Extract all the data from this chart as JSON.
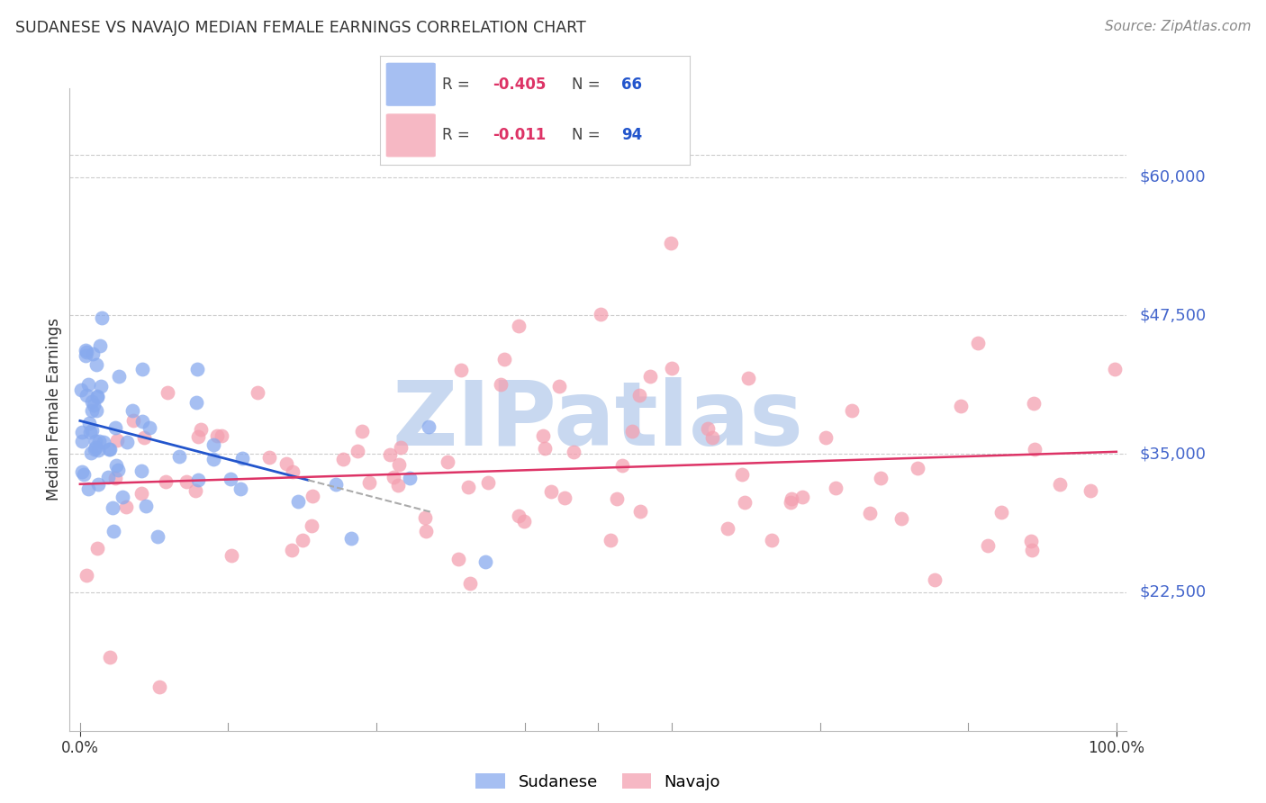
{
  "title": "SUDANESE VS NAVAJO MEDIAN FEMALE EARNINGS CORRELATION CHART",
  "source": "Source: ZipAtlas.com",
  "ylabel": "Median Female Earnings",
  "ylim": [
    10000,
    68000
  ],
  "xlim": [
    -1.0,
    101.0
  ],
  "sudanese_color": "#88aaee",
  "navajo_color": "#f4a0b0",
  "sudanese_line_color": "#2255cc",
  "navajo_line_color": "#dd3366",
  "background_color": "#ffffff",
  "watermark_color": "#c8d8f0",
  "watermark_text": "ZIPatlas",
  "grid_color": "#cccccc",
  "title_color": "#333333",
  "source_color": "#888888",
  "ylabel_color": "#333333",
  "ytick_color": "#4466cc",
  "xtick_color": "#333333",
  "ytick_vals": [
    22500,
    35000,
    47500,
    60000
  ],
  "ytick_strs": [
    "$22,500",
    "$35,000",
    "$47,500",
    "$60,000"
  ],
  "grid_vals": [
    22500,
    35000,
    47500,
    60000
  ],
  "top_grid_val": 62000,
  "navajo_line_y": 33500
}
